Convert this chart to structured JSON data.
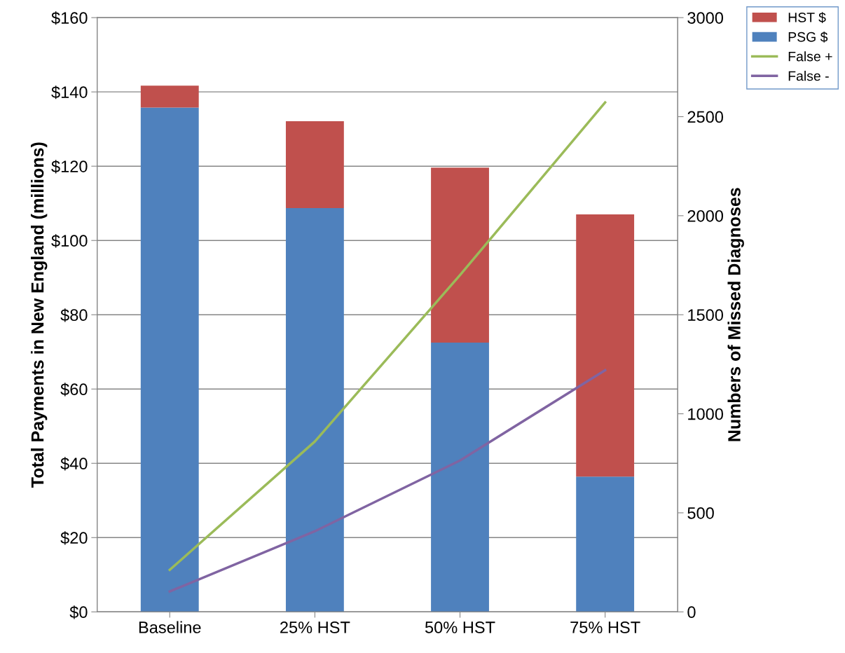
{
  "chart_data": {
    "type": "bar",
    "stacked": true,
    "categories": [
      "Baseline",
      "25% HST",
      "50% HST",
      "75% HST"
    ],
    "ylabel": "Total Payments in New England (millions)",
    "y2label": "Numbers of Missed Diagnoses",
    "ylim": [
      0,
      160
    ],
    "yticks": [
      {
        "value": 0,
        "label": "$0"
      },
      {
        "value": 20,
        "label": "$20"
      },
      {
        "value": 40,
        "label": "$40"
      },
      {
        "value": 60,
        "label": "$60"
      },
      {
        "value": 80,
        "label": "$80"
      },
      {
        "value": 100,
        "label": "$100"
      },
      {
        "value": 120,
        "label": "$120"
      },
      {
        "value": 140,
        "label": "$140"
      },
      {
        "value": 160,
        "label": "$160"
      }
    ],
    "y2lim": [
      0,
      3000
    ],
    "y2ticks": [
      0,
      500,
      1000,
      1500,
      2000,
      2500,
      3000
    ],
    "grid": "y",
    "legend": "top right",
    "series": [
      {
        "name": "PSG $",
        "color": "#4f81bd",
        "values": [
          135.8,
          108.7,
          72.5,
          36.4
        ]
      },
      {
        "name": "HST $",
        "color": "#c0504d",
        "values": [
          5.9,
          23.4,
          47.1,
          70.6
        ]
      },
      {
        "name": "False +",
        "type": "line",
        "axis": "y2",
        "color": "#9bbb59",
        "values": [
          212,
          860,
          1700,
          2572
        ]
      },
      {
        "name": "False -",
        "type": "line",
        "axis": "y2",
        "color": "#8064a2",
        "values": [
          103,
          407,
          764,
          1220
        ]
      }
    ]
  }
}
